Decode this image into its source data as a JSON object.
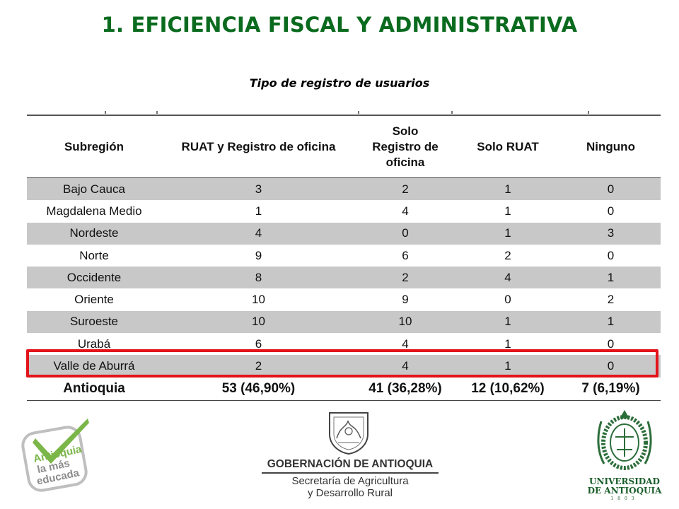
{
  "title": "1. EFICIENCIA FISCAL Y ADMINISTRATIVA",
  "subtitle": "Tipo de registro de usuarios",
  "table": {
    "headers": [
      "Subregión",
      "RUAT y Registro de oficina",
      "Solo\nRegistro de\noficina",
      "Solo RUAT",
      "Ninguno"
    ],
    "rows": [
      [
        "Bajo Cauca",
        "3",
        "2",
        "1",
        "0"
      ],
      [
        "Magdalena Medio",
        "1",
        "4",
        "1",
        "0"
      ],
      [
        "Nordeste",
        "4",
        "0",
        "1",
        "3"
      ],
      [
        "Norte",
        "9",
        "6",
        "2",
        "0"
      ],
      [
        "Occidente",
        "8",
        "2",
        "4",
        "1"
      ],
      [
        "Oriente",
        "10",
        "9",
        "0",
        "2"
      ],
      [
        "Suroeste",
        "10",
        "10",
        "1",
        "1"
      ],
      [
        "Urabá",
        "6",
        "4",
        "1",
        "0"
      ],
      [
        "Valle de Aburrá",
        "2",
        "4",
        "1",
        "0"
      ]
    ],
    "total": [
      "Antioquia",
      "53 (46,90%)",
      "41 (36,28%)",
      "12 (10,62%)",
      "7 (6,19%)"
    ],
    "highlighted_row": "Valle de Aburrá"
  },
  "logos": {
    "left_logo_text": [
      "Antioquia",
      "la más",
      "educada"
    ],
    "gov_name": "GOBERNACIÓN DE ANTIOQUIA",
    "gov_secretaria": [
      "Secretaría de Agricultura",
      "y Desarrollo Rural"
    ],
    "udea_name": [
      "UNIVERSIDAD",
      "DE ANTIOQUIA"
    ],
    "udea_year": "1803"
  },
  "colors": {
    "title_green": "#0a6b1e",
    "row_shade": "#c8c8c8",
    "highlight_red": "#e3141b",
    "logo_green": "#7ab648"
  }
}
